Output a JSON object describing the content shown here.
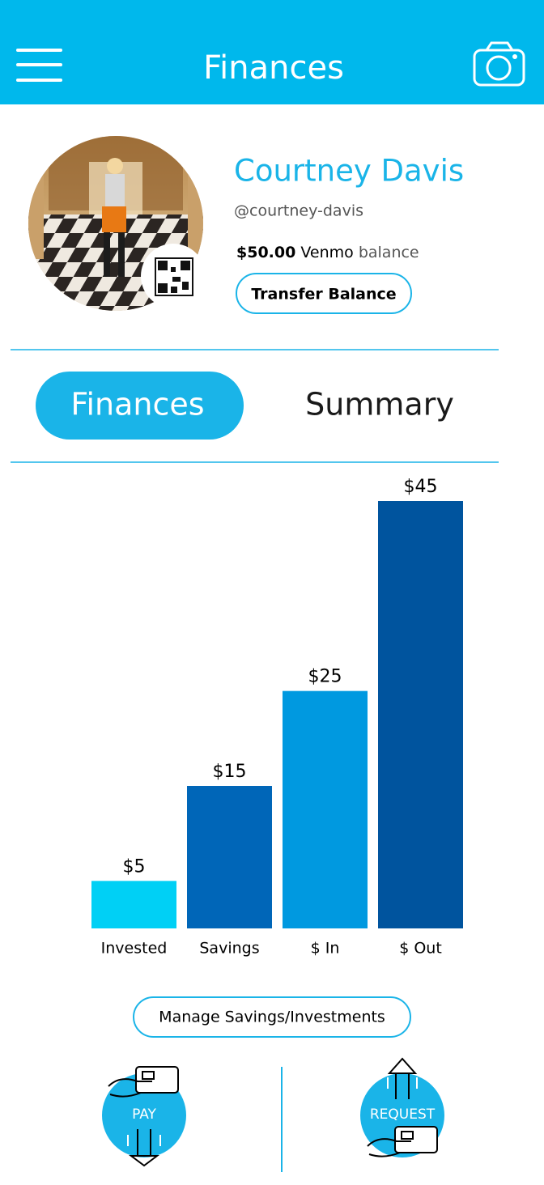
{
  "header": {
    "title": "Finances"
  },
  "profile": {
    "name": "Courtney Davis",
    "handle": "@courtney-davis",
    "balance_amount": "$50.00",
    "balance_service": "Venmo",
    "balance_word": "balance",
    "transfer_button": "Transfer Balance"
  },
  "tabs": [
    "Finances",
    "Summary"
  ],
  "chart_data": {
    "type": "bar",
    "categories": [
      "Invested",
      "Savings",
      "$ In",
      "$ Out"
    ],
    "values": [
      5,
      15,
      25,
      45
    ],
    "value_labels": [
      "$5",
      "$15",
      "$25",
      "$45"
    ],
    "colors": [
      "#00d0f5",
      "#0066b8",
      "#0099e0",
      "#00549e"
    ]
  },
  "manage_button": "Manage Savings/Investments",
  "actions": [
    "PAY",
    "REQUEST"
  ]
}
